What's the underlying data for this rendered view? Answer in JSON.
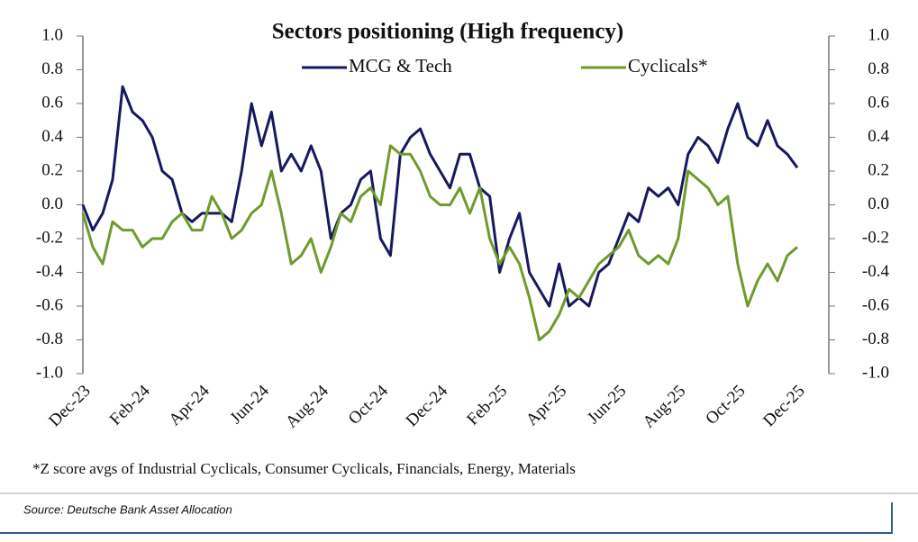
{
  "chart_data": {
    "type": "line",
    "title": "Sectors positioning (High frequency)",
    "footnote": "*Z score avgs of Industrial Cyclicals, Consumer Cyclicals, Financials, Energy, Materials",
    "source": "Source: Deutsche Bank Asset Allocation",
    "categories": [
      "Dec-23",
      null,
      null,
      null,
      null,
      null,
      "Feb-24",
      null,
      null,
      null,
      null,
      null,
      "Apr-24",
      null,
      null,
      null,
      null,
      null,
      "Jun-24",
      null,
      null,
      null,
      null,
      null,
      "Aug-24",
      null,
      null,
      null,
      null,
      null,
      "Oct-24",
      null,
      null,
      null,
      null,
      null,
      "Dec-24",
      null,
      null,
      null,
      null,
      null,
      "Feb-25",
      null,
      null,
      null,
      null,
      null,
      "Apr-25",
      null,
      null,
      null,
      null,
      null,
      "Jun-25",
      null,
      null,
      null,
      null,
      null,
      "Aug-25",
      null,
      null,
      null,
      null,
      null,
      "Oct-25",
      null,
      null,
      null,
      null,
      null,
      "Dec-25"
    ],
    "series": [
      {
        "name": "MCG & Tech",
        "color": "#16195e",
        "values": [
          0.0,
          -0.15,
          -0.05,
          0.15,
          0.7,
          0.55,
          0.5,
          0.4,
          0.2,
          0.15,
          -0.05,
          -0.1,
          -0.05,
          -0.05,
          -0.05,
          -0.1,
          0.2,
          0.6,
          0.35,
          0.55,
          0.2,
          0.3,
          0.2,
          0.35,
          0.2,
          -0.2,
          -0.05,
          0.0,
          0.15,
          0.2,
          -0.2,
          -0.3,
          0.3,
          0.4,
          0.45,
          0.3,
          0.2,
          0.1,
          0.3,
          0.3,
          0.1,
          0.05,
          -0.4,
          -0.2,
          -0.05,
          -0.4,
          -0.5,
          -0.6,
          -0.35,
          -0.6,
          -0.55,
          -0.6,
          -0.4,
          -0.35,
          -0.2,
          -0.05,
          -0.1,
          0.1,
          0.05,
          0.1,
          0.0,
          0.3,
          0.4,
          0.35,
          0.25,
          0.45,
          0.6,
          0.4,
          0.35,
          0.5,
          0.35,
          0.3,
          0.22
        ]
      },
      {
        "name": "Cyclicals*",
        "color": "#6f9a2c",
        "values": [
          -0.05,
          -0.25,
          -0.35,
          -0.1,
          -0.15,
          -0.15,
          -0.25,
          -0.2,
          -0.2,
          -0.1,
          -0.05,
          -0.15,
          -0.15,
          0.05,
          -0.05,
          -0.2,
          -0.15,
          -0.05,
          0.0,
          0.2,
          -0.05,
          -0.35,
          -0.3,
          -0.2,
          -0.4,
          -0.25,
          -0.05,
          -0.1,
          0.05,
          0.1,
          0.0,
          0.35,
          0.3,
          0.3,
          0.2,
          0.05,
          0.0,
          0.0,
          0.1,
          -0.05,
          0.1,
          -0.2,
          -0.35,
          -0.25,
          -0.35,
          -0.55,
          -0.8,
          -0.75,
          -0.65,
          -0.5,
          -0.55,
          -0.45,
          -0.35,
          -0.3,
          -0.25,
          -0.15,
          -0.3,
          -0.35,
          -0.3,
          -0.35,
          -0.2,
          0.2,
          0.15,
          0.1,
          0.0,
          0.05,
          -0.35,
          -0.6,
          -0.45,
          -0.35,
          -0.45,
          -0.3,
          -0.25
        ]
      }
    ],
    "ylim": [
      -1,
      1
    ],
    "yticks": [
      {
        "value": 1,
        "label": "1.0"
      },
      {
        "value": 0.8,
        "label": "0.8"
      },
      {
        "value": 0.6,
        "label": "0.6"
      },
      {
        "value": 0.4,
        "label": "0.4"
      },
      {
        "value": 0.2,
        "label": "0.2"
      },
      {
        "value": 0,
        "label": "0.0"
      },
      {
        "value": -0.2,
        "label": "-0.2"
      },
      {
        "value": -0.4,
        "label": "-0.4"
      },
      {
        "value": -0.6,
        "label": "-0.6"
      },
      {
        "value": -0.8,
        "label": "-0.8"
      },
      {
        "value": -1,
        "label": "-1.0"
      }
    ],
    "y2lim": [
      -1,
      1
    ],
    "y2ticks": [
      {
        "value": 1,
        "label": "1.0"
      },
      {
        "value": 0.8,
        "label": "0.8"
      },
      {
        "value": 0.6,
        "label": "0.6"
      },
      {
        "value": 0.4,
        "label": "0.4"
      },
      {
        "value": 0.2,
        "label": "0.2"
      },
      {
        "value": 0,
        "label": "0.0"
      },
      {
        "value": -0.2,
        "label": "-0.2"
      },
      {
        "value": -0.4,
        "label": "-0.4"
      },
      {
        "value": -0.6,
        "label": "-0.6"
      },
      {
        "value": -0.8,
        "label": "-0.8"
      },
      {
        "value": -1,
        "label": "-1.0"
      }
    ]
  }
}
